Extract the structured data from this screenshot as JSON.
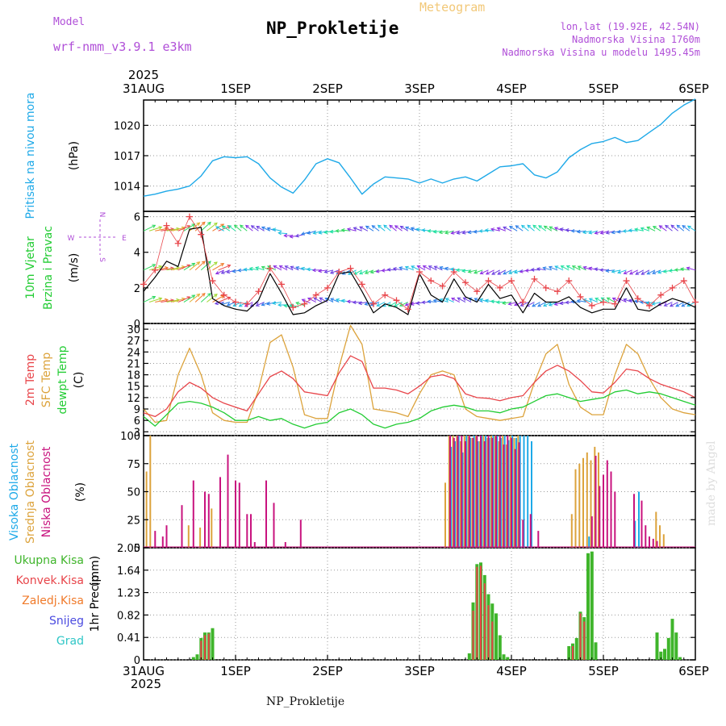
{
  "header": {
    "model_label": "Model",
    "model_name": "wrf-nmm_v3.9.1 e3km",
    "title": "NP_Prokletije",
    "meteogram": "Meteogram",
    "lonlat": "lon,lat (19.92E, 42.54N)",
    "altitude": "Nadmorska Visina 1760m",
    "model_altitude": "Nadmorska Visina u modelu 1495.45m"
  },
  "footer": {
    "station": "NP_Prokletije",
    "credit": "made by Angel"
  },
  "time_axis": {
    "year": "2025",
    "labels": [
      "31AUG",
      "1SEP",
      "2SEP",
      "3SEP",
      "4SEP",
      "5SEP",
      "6SEP"
    ]
  },
  "compass": {
    "n": "N",
    "s": "S",
    "e": "E",
    "w": "W"
  },
  "colors": {
    "pressure": "#1ea9e8",
    "wind_label": "#22cc33",
    "temp2m": "#e8454a",
    "sfc": "#dca33c",
    "dewpt": "#22cc33",
    "cloud_high": "#1ea9e8",
    "cloud_mid": "#dca33c",
    "cloud_low": "#c8137e",
    "precip_total": "#3fb52b",
    "precip_conv": "#e8454a",
    "precip_frozen": "#f07a2a",
    "snow": "#4b4be0",
    "hail": "#2ec6c6",
    "purple": "#b04fd8"
  },
  "chart_data": [
    {
      "id": "pressure",
      "type": "line",
      "ylabel_title": "Pritisak na nivou mora",
      "ylabel_unit": "(hPa)",
      "ylim": [
        1011.5,
        1022.5
      ],
      "yticks": [
        1014,
        1017,
        1020
      ],
      "series": [
        {
          "name": "Sea level pressure",
          "x_hours": [
            0,
            3,
            6,
            9,
            12,
            15,
            18,
            21,
            24,
            27,
            30,
            33,
            36,
            39,
            42,
            45,
            48,
            51,
            54,
            57,
            60,
            63,
            66,
            69,
            72,
            75,
            78,
            81,
            84,
            87,
            90,
            93,
            96,
            99,
            102,
            105,
            108,
            111,
            114,
            117,
            120,
            123,
            126,
            129,
            132,
            135,
            138,
            141,
            144
          ],
          "values": [
            1013.0,
            1013.2,
            1013.5,
            1013.7,
            1014.0,
            1015.0,
            1016.5,
            1016.9,
            1016.8,
            1016.9,
            1016.2,
            1014.8,
            1013.9,
            1013.3,
            1014.6,
            1016.2,
            1016.7,
            1016.3,
            1014.8,
            1013.2,
            1014.2,
            1014.9,
            1014.8,
            1014.7,
            1014.3,
            1014.7,
            1014.3,
            1014.7,
            1014.9,
            1014.5,
            1015.2,
            1015.9,
            1016.0,
            1016.2,
            1015.1,
            1014.8,
            1015.4,
            1016.8,
            1017.6,
            1018.2,
            1018.4,
            1018.8,
            1018.3,
            1018.5,
            1019.3,
            1020.1,
            1021.2,
            1022.0,
            1022.6
          ]
        }
      ]
    },
    {
      "id": "wind",
      "type": "line",
      "ylabel_title": "10m Vjetar",
      "ylabel_title2": "Brzina i Pravac",
      "ylabel_unit": "(m/s)",
      "ylim": [
        0,
        6.3
      ],
      "yticks": [
        0,
        2,
        4,
        6
      ],
      "series": [
        {
          "name": "Wind speed (model)",
          "x_hours": [
            0,
            3,
            6,
            9,
            12,
            15,
            18,
            21,
            24,
            27,
            30,
            33,
            36,
            39,
            42,
            45,
            48,
            51,
            54,
            57,
            60,
            63,
            66,
            69,
            72,
            75,
            78,
            81,
            84,
            87,
            90,
            93,
            96,
            99,
            102,
            105,
            108,
            111,
            114,
            117,
            120,
            123,
            126,
            129,
            132,
            135,
            138,
            141,
            144
          ],
          "values": [
            1.8,
            2.6,
            3.5,
            3.2,
            5.3,
            5.4,
            1.4,
            1.0,
            0.8,
            0.7,
            1.3,
            2.8,
            1.7,
            0.5,
            0.6,
            1.0,
            1.3,
            2.8,
            2.9,
            1.8,
            0.6,
            1.1,
            0.9,
            0.5,
            2.8,
            1.6,
            1.2,
            2.5,
            1.5,
            1.2,
            2.2,
            1.4,
            1.6,
            0.6,
            1.7,
            1.2,
            1.2,
            1.5,
            0.9,
            0.6,
            0.8,
            0.8,
            2.0,
            0.8,
            0.7,
            1.1,
            1.4,
            1.2,
            0.9
          ]
        },
        {
          "name": "Wind gust (+)",
          "x_hours": [
            0,
            3,
            6,
            9,
            12,
            15,
            18,
            21,
            24,
            27,
            30,
            33,
            36,
            39,
            42,
            45,
            48,
            51,
            54,
            57,
            60,
            63,
            66,
            69,
            72,
            75,
            78,
            81,
            84,
            87,
            90,
            93,
            96,
            99,
            102,
            105,
            108,
            111,
            114,
            117,
            120,
            123,
            126,
            129,
            132,
            135,
            138,
            141,
            144
          ],
          "values": [
            2.2,
            3.0,
            5.5,
            4.5,
            6.0,
            5.0,
            2.4,
            1.6,
            1.2,
            1.1,
            1.8,
            3.1,
            2.2,
            0.9,
            1.1,
            1.6,
            2.0,
            2.9,
            3.1,
            2.2,
            1.1,
            1.6,
            1.3,
            0.8,
            2.9,
            2.4,
            2.1,
            2.9,
            2.3,
            1.8,
            2.4,
            2.0,
            2.4,
            1.2,
            2.5,
            2.0,
            1.8,
            2.4,
            1.5,
            1.0,
            1.2,
            1.1,
            2.4,
            1.4,
            1.0,
            1.6,
            2.0,
            2.4,
            1.2
          ]
        }
      ],
      "arrow_rows": [
        {
          "level": 1.2,
          "gaps": false
        },
        {
          "level": 3.0,
          "gaps": false
        },
        {
          "level": 5.2,
          "gaps": false
        }
      ]
    },
    {
      "id": "temperature",
      "type": "line",
      "ylabel_title": "2m Temp",
      "ylabel_title2": "SFC Temp",
      "ylabel_title3": "dewpt Temp",
      "ylabel_unit": "(C)",
      "ylim": [
        2,
        31.5
      ],
      "yticks": [
        3,
        6,
        9,
        12,
        15,
        18,
        21,
        24,
        27,
        30
      ],
      "series": [
        {
          "name": "2m Temp",
          "x_hours": [
            0,
            3,
            6,
            9,
            12,
            15,
            18,
            21,
            24,
            27,
            30,
            33,
            36,
            39,
            42,
            45,
            48,
            51,
            54,
            57,
            60,
            63,
            66,
            69,
            72,
            75,
            78,
            81,
            84,
            87,
            90,
            93,
            96,
            99,
            102,
            105,
            108,
            111,
            114,
            117,
            120,
            123,
            126,
            129,
            132,
            135,
            138,
            141,
            144
          ],
          "values": [
            8.0,
            7.0,
            9.0,
            13.5,
            16.0,
            14.5,
            12.0,
            10.5,
            9.5,
            8.5,
            13.0,
            17.5,
            19.0,
            17.0,
            13.5,
            13.0,
            12.5,
            18.5,
            23.0,
            21.5,
            14.5,
            14.5,
            14.0,
            13.0,
            15.0,
            17.5,
            18.0,
            17.0,
            13.0,
            12.0,
            11.8,
            11.2,
            12.0,
            12.5,
            16.0,
            19.0,
            20.5,
            19.0,
            16.5,
            13.5,
            13.2,
            16.0,
            19.5,
            19.0,
            17.0,
            15.5,
            14.5,
            13.5,
            12.0
          ]
        },
        {
          "name": "SFC Temp",
          "x_hours": [
            0,
            3,
            6,
            9,
            12,
            15,
            18,
            21,
            24,
            27,
            30,
            33,
            36,
            39,
            42,
            45,
            48,
            51,
            54,
            57,
            60,
            63,
            66,
            69,
            72,
            75,
            78,
            81,
            84,
            87,
            90,
            93,
            96,
            99,
            102,
            105,
            108,
            111,
            114,
            117,
            120,
            123,
            126,
            129,
            132,
            135,
            138,
            141,
            144
          ],
          "values": [
            9.0,
            5.5,
            6.0,
            18.0,
            25.0,
            18.0,
            8.0,
            6.0,
            5.5,
            5.5,
            14.0,
            26.5,
            28.5,
            20.0,
            7.5,
            6.5,
            6.5,
            20.0,
            31.0,
            26.0,
            9.0,
            8.5,
            8.0,
            7.0,
            13.0,
            18.0,
            19.0,
            18.0,
            9.0,
            7.0,
            6.5,
            6.0,
            6.5,
            7.0,
            16.0,
            23.5,
            26.0,
            15.5,
            9.5,
            7.5,
            7.5,
            18.0,
            26.0,
            23.5,
            17.0,
            12.0,
            9.0,
            8.0,
            7.5
          ]
        },
        {
          "name": "dewpt Temp",
          "x_hours": [
            0,
            3,
            6,
            9,
            12,
            15,
            18,
            21,
            24,
            27,
            30,
            33,
            36,
            39,
            42,
            45,
            48,
            51,
            54,
            57,
            60,
            63,
            66,
            69,
            72,
            75,
            78,
            81,
            84,
            87,
            90,
            93,
            96,
            99,
            102,
            105,
            108,
            111,
            114,
            117,
            120,
            123,
            126,
            129,
            132,
            135,
            138,
            141,
            144
          ],
          "values": [
            7.0,
            4.5,
            7.5,
            10.5,
            11.0,
            10.5,
            9.5,
            8.0,
            6.0,
            6.0,
            7.0,
            6.0,
            6.5,
            5.0,
            4.0,
            5.0,
            5.5,
            8.0,
            9.0,
            7.5,
            5.0,
            4.0,
            5.0,
            5.5,
            6.5,
            8.5,
            9.5,
            10.0,
            9.5,
            8.5,
            8.5,
            8.0,
            9.0,
            9.5,
            11.0,
            12.5,
            13.0,
            12.0,
            11.0,
            11.5,
            12.0,
            13.5,
            14.0,
            13.0,
            13.5,
            13.0,
            12.0,
            11.0,
            10.0
          ]
        }
      ]
    },
    {
      "id": "clouds",
      "type": "bar",
      "ylabel_title": "Visoka Oblacnost",
      "ylabel_title2": "Srednja Oblacnost",
      "ylabel_title3": "Niska Oblacnost",
      "ylabel_unit": "(%)",
      "ylim": [
        0,
        100
      ],
      "yticks": [
        0,
        25,
        50,
        75,
        100
      ],
      "series": [
        {
          "name": "Visoka Oblacnost",
          "x_hours": [
            80,
            81,
            82,
            83,
            84,
            85,
            86,
            87,
            88,
            89,
            90,
            91,
            92,
            93,
            94,
            95,
            96,
            97,
            98,
            99,
            100,
            101,
            116,
            128,
            129
          ],
          "values": [
            90,
            95,
            100,
            85,
            100,
            98,
            100,
            95,
            100,
            100,
            98,
            100,
            100,
            98,
            100,
            96,
            100,
            98,
            100,
            100,
            100,
            95,
            10,
            24,
            50
          ]
        },
        {
          "name": "Srednja Oblacnost",
          "x_hours": [
            1,
            2,
            12,
            15,
            18,
            79,
            80,
            81,
            82,
            83,
            84,
            85,
            86,
            87,
            88,
            89,
            90,
            91,
            92,
            93,
            94,
            95,
            96,
            97,
            98,
            112,
            113,
            114,
            115,
            116,
            117,
            118,
            119,
            134,
            135,
            136
          ],
          "values": [
            68,
            100,
            20,
            18,
            35,
            58,
            100,
            100,
            100,
            95,
            100,
            100,
            98,
            100,
            95,
            100,
            98,
            100,
            100,
            95,
            100,
            92,
            100,
            98,
            100,
            30,
            70,
            75,
            80,
            85,
            78,
            90,
            85,
            32,
            20,
            12
          ]
        },
        {
          "name": "Niska Oblacnost",
          "x_hours": [
            3,
            5,
            6,
            10,
            13,
            16,
            17,
            20,
            22,
            24,
            25,
            27,
            28,
            29,
            32,
            34,
            37,
            41,
            80,
            81,
            82,
            83,
            84,
            85,
            86,
            87,
            88,
            89,
            90,
            91,
            92,
            93,
            94,
            95,
            96,
            97,
            98,
            99,
            101,
            103,
            117,
            118,
            119,
            120,
            121,
            122,
            123,
            128,
            130,
            131,
            132,
            133,
            134
          ],
          "values": [
            15,
            10,
            20,
            38,
            60,
            50,
            48,
            63,
            83,
            60,
            58,
            30,
            30,
            5,
            60,
            40,
            5,
            25,
            100,
            98,
            100,
            100,
            95,
            100,
            98,
            100,
            100,
            95,
            100,
            98,
            100,
            100,
            92,
            100,
            98,
            88,
            94,
            25,
            30,
            15,
            28,
            82,
            55,
            65,
            78,
            68,
            50,
            48,
            42,
            20,
            10,
            8,
            6
          ]
        }
      ]
    },
    {
      "id": "precip",
      "type": "bar",
      "ylabel_title": "1hr Precip",
      "ylabel_unit": "(mm)",
      "ylim": [
        0,
        2.05
      ],
      "yticks": [
        0,
        0.41,
        0.82,
        1.23,
        1.64,
        2.05
      ],
      "legend": [
        "Ukupna Kisa",
        "Konvek.Kisa",
        "Zaledj.Kisa",
        "Snijeg",
        "Grad"
      ],
      "series": [
        {
          "name": "Ukupna Kisa",
          "x_hours": [
            13,
            14,
            15,
            16,
            17,
            18,
            85,
            86,
            87,
            88,
            89,
            90,
            91,
            92,
            93,
            94,
            95,
            111,
            112,
            113,
            114,
            115,
            116,
            117,
            118,
            134,
            135,
            136,
            137,
            138,
            139,
            140
          ],
          "values": [
            0.05,
            0.1,
            0.4,
            0.5,
            0.5,
            0.58,
            0.12,
            1.05,
            1.75,
            1.78,
            1.55,
            1.2,
            1.03,
            0.85,
            0.45,
            0.1,
            0.05,
            0.25,
            0.3,
            0.4,
            0.88,
            0.78,
            1.95,
            1.98,
            0.32,
            0.5,
            0.15,
            0.2,
            0.4,
            0.75,
            0.5,
            0.05
          ]
        },
        {
          "name": "Konvek.Kisa",
          "x_hours": [
            15,
            16,
            17,
            86,
            87,
            88,
            89,
            90,
            91,
            112,
            114,
            115
          ],
          "values": [
            0.35,
            0.45,
            0.48,
            0.9,
            1.7,
            1.72,
            1.4,
            1.0,
            0.7,
            0.25,
            0.85,
            0.7
          ]
        }
      ]
    }
  ]
}
